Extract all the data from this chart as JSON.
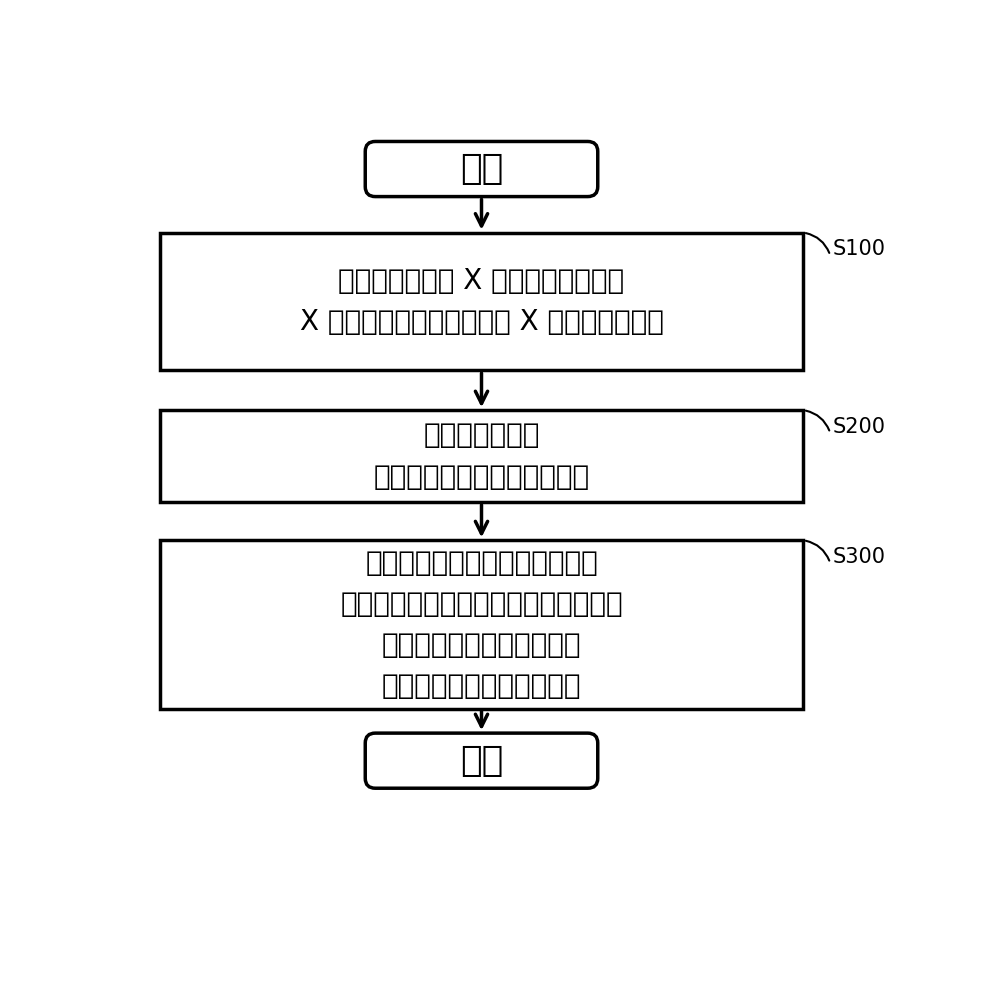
{
  "bg_color": "#ffffff",
  "text_color": "#000000",
  "arrow_color": "#000000",
  "start_end_text": [
    "开始",
    "结束"
  ],
  "box_texts": [
    "向被检查物照射 X 射线，检测低能量\nX 射线的透过强度和高能量 X 射线的透过强度",
    "关于被检查物，\n求出差分值与权重系数的关系",
    "基于关于被检查物的权重系数与\n差分值的关系以及关于多个参照物体的\n权重系数与差分值的关系，\n判定被检查物的物质的种类"
  ],
  "step_labels": [
    "S100",
    "S200",
    "S300"
  ],
  "font_size_main": 20,
  "font_size_step": 15,
  "font_size_oval": 26,
  "line_width": 2.5
}
